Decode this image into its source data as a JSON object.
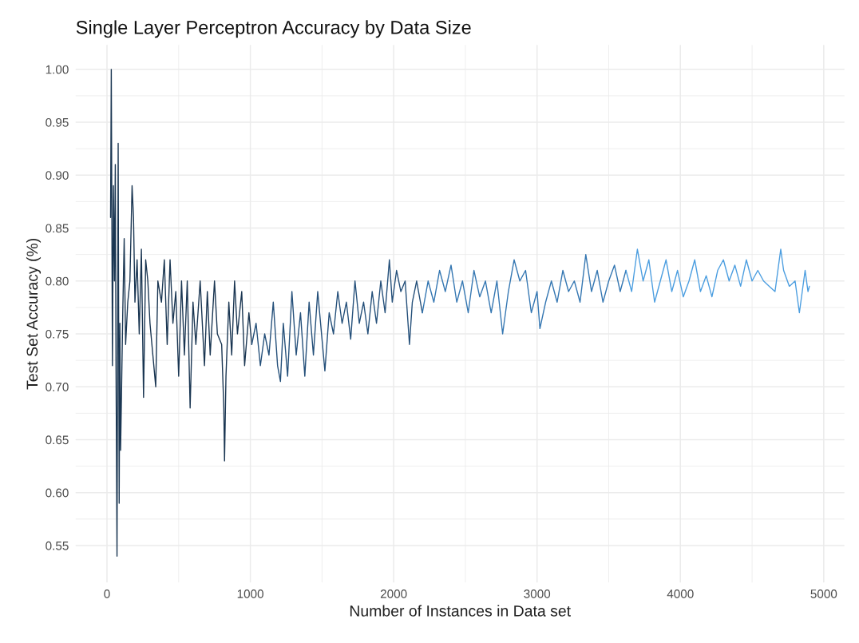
{
  "chart_data": {
    "type": "line",
    "title": "Single Layer Perceptron Accuracy by Data Size",
    "xlabel": "Number of Instances in Data set",
    "ylabel": "Test Set Accuracy (%)",
    "xlim": [
      -219,
      5144
    ],
    "xticks": [
      0,
      1000,
      2000,
      3000,
      4000,
      5000
    ],
    "ylim": [
      0.515,
      1.023
    ],
    "yticks": [
      {
        "value": 0.55,
        "label": "0.55"
      },
      {
        "value": 0.6,
        "label": "0.60"
      },
      {
        "value": 0.65,
        "label": "0.65"
      },
      {
        "value": 0.7,
        "label": "0.70"
      },
      {
        "value": 0.75,
        "label": "0.75"
      },
      {
        "value": 0.8,
        "label": "0.80"
      },
      {
        "value": 0.85,
        "label": "0.85"
      },
      {
        "value": 0.9,
        "label": "0.90"
      },
      {
        "value": 0.95,
        "label": "0.95"
      },
      {
        "value": 1.0,
        "label": "1.00"
      }
    ],
    "grid": true,
    "legend": false,
    "series": [
      {
        "color": "#1a3652",
        "x": [
          25,
          30,
          38,
          45,
          52,
          58,
          63,
          70,
          78,
          85,
          90,
          95,
          102,
          110,
          120,
          130,
          145,
          160,
          175,
          185,
          195,
          210,
          225,
          240,
          255,
          270,
          285,
          300,
          320,
          340,
          355,
          380,
          400,
          420,
          440,
          460,
          480,
          500,
          520,
          540,
          560,
          580,
          600,
          620,
          650,
          680,
          700,
          720,
          750,
          770,
          800,
          815,
          820,
          830,
          850,
          870,
          890,
          910,
          940,
          960,
          990,
          1010
        ],
        "values": [
          0.86,
          1.0,
          0.72,
          0.89,
          0.8,
          0.91,
          0.72,
          0.54,
          0.93,
          0.59,
          0.76,
          0.64,
          0.7,
          0.77,
          0.84,
          0.74,
          0.78,
          0.8,
          0.89,
          0.86,
          0.78,
          0.82,
          0.75,
          0.83,
          0.69,
          0.82,
          0.8,
          0.76,
          0.73,
          0.7,
          0.8,
          0.78,
          0.82,
          0.74,
          0.82,
          0.76,
          0.79,
          0.71,
          0.8,
          0.73,
          0.8,
          0.68,
          0.78,
          0.74,
          0.8,
          0.72,
          0.79,
          0.73,
          0.8,
          0.75,
          0.74,
          0.68,
          0.63,
          0.71,
          0.78,
          0.73,
          0.8,
          0.75,
          0.79,
          0.72,
          0.77,
          0.74
        ]
      },
      {
        "color": "#25507a",
        "x": [
          1010,
          1040,
          1070,
          1100,
          1130,
          1160,
          1190,
          1210,
          1230,
          1260,
          1290,
          1320,
          1350,
          1380,
          1410,
          1440,
          1470,
          1500,
          1520,
          1550,
          1580,
          1610,
          1640,
          1670,
          1700,
          1730,
          1760,
          1790,
          1820,
          1850,
          1880,
          1910,
          1940,
          1970,
          1990,
          2020,
          2050,
          2080,
          2110,
          2130,
          2160,
          2200
        ],
        "values": [
          0.74,
          0.76,
          0.72,
          0.75,
          0.73,
          0.78,
          0.72,
          0.705,
          0.76,
          0.71,
          0.79,
          0.73,
          0.77,
          0.71,
          0.78,
          0.73,
          0.79,
          0.745,
          0.715,
          0.77,
          0.75,
          0.79,
          0.76,
          0.78,
          0.745,
          0.8,
          0.76,
          0.78,
          0.75,
          0.79,
          0.76,
          0.8,
          0.77,
          0.82,
          0.78,
          0.81,
          0.79,
          0.8,
          0.74,
          0.78,
          0.8,
          0.77
        ]
      },
      {
        "color": "#3577b2",
        "x": [
          2200,
          2240,
          2280,
          2320,
          2360,
          2400,
          2440,
          2480,
          2520,
          2560,
          2600,
          2640,
          2680,
          2720,
          2760,
          2800,
          2840,
          2880,
          2920,
          2960,
          3000,
          3020,
          3060,
          3100,
          3140,
          3180,
          3220,
          3260,
          3300,
          3340,
          3380,
          3420,
          3460,
          3500,
          3540,
          3580,
          3620
        ],
        "values": [
          0.77,
          0.8,
          0.78,
          0.81,
          0.79,
          0.815,
          0.78,
          0.8,
          0.77,
          0.81,
          0.785,
          0.8,
          0.77,
          0.8,
          0.75,
          0.79,
          0.82,
          0.8,
          0.81,
          0.77,
          0.79,
          0.755,
          0.78,
          0.8,
          0.78,
          0.81,
          0.79,
          0.8,
          0.78,
          0.825,
          0.79,
          0.81,
          0.78,
          0.8,
          0.815,
          0.79,
          0.81
        ]
      },
      {
        "color": "#4c9ee0",
        "x": [
          3620,
          3660,
          3700,
          3740,
          3780,
          3820,
          3860,
          3900,
          3940,
          3980,
          4020,
          4060,
          4100,
          4140,
          4180,
          4220,
          4260,
          4300,
          4340,
          4380,
          4420,
          4460,
          4500,
          4540,
          4580,
          4620,
          4660,
          4700,
          4720,
          4760,
          4800,
          4830,
          4850,
          4870,
          4890,
          4900
        ],
        "values": [
          0.81,
          0.79,
          0.83,
          0.8,
          0.82,
          0.78,
          0.8,
          0.82,
          0.79,
          0.81,
          0.785,
          0.8,
          0.82,
          0.79,
          0.805,
          0.785,
          0.81,
          0.82,
          0.8,
          0.815,
          0.795,
          0.82,
          0.8,
          0.81,
          0.8,
          0.795,
          0.79,
          0.83,
          0.81,
          0.795,
          0.8,
          0.77,
          0.79,
          0.81,
          0.79,
          0.795
        ]
      }
    ]
  }
}
